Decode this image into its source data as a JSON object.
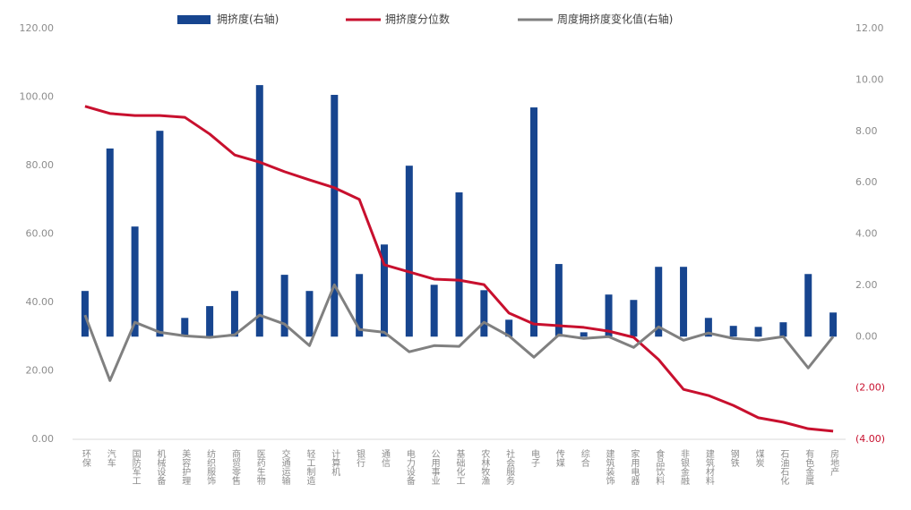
{
  "chart_data": {
    "type": "bar-line",
    "categories": [
      "环保",
      "汽车",
      "国防军工",
      "机械设备",
      "美容护理",
      "纺织服饰",
      "商贸零售",
      "医药生物",
      "交通运输",
      "轻工制造",
      "计算机",
      "银行",
      "通信",
      "电力设备",
      "公用事业",
      "基础化工",
      "农林牧渔",
      "社会服务",
      "电子",
      "传媒",
      "综合",
      "建筑装饰",
      "家用电器",
      "食品饮料",
      "非银金融",
      "建筑材料",
      "钢铁",
      "煤炭",
      "石油石化",
      "有色金属",
      "房地产"
    ],
    "series": [
      {
        "name": "拥挤度(右轴)",
        "type": "bar",
        "axis": "y2",
        "color": "#17458f",
        "values": [
          1.78,
          7.33,
          4.29,
          8.02,
          0.73,
          1.19,
          1.78,
          9.8,
          2.41,
          1.78,
          9.42,
          2.44,
          3.59,
          6.66,
          2.02,
          5.62,
          1.81,
          0.66,
          8.93,
          2.83,
          0.17,
          1.64,
          1.43,
          2.72,
          2.72,
          0.73,
          0.42,
          0.38,
          0.56,
          2.44,
          0.94
        ]
      },
      {
        "name": "拥挤度分位数",
        "type": "line",
        "axis": "y",
        "color": "#c8102e",
        "values": [
          97.3,
          95.2,
          94.6,
          94.6,
          94.1,
          89.2,
          83.1,
          81.0,
          78.2,
          75.8,
          73.5,
          70.1,
          51.0,
          48.9,
          46.8,
          46.5,
          45.2,
          36.9,
          33.7,
          33.2,
          32.7,
          31.6,
          29.8,
          23.3,
          14.6,
          12.8,
          9.9,
          6.3,
          5.0,
          3.1,
          2.4
        ]
      },
      {
        "name": "周度拥挤度变化值(右轴)",
        "type": "line",
        "axis": "y2",
        "color": "#808080",
        "values": [
          0.84,
          -1.71,
          0.56,
          0.17,
          0.03,
          -0.03,
          0.07,
          0.84,
          0.49,
          -0.35,
          2.02,
          0.28,
          0.17,
          -0.59,
          -0.35,
          -0.38,
          0.56,
          0.03,
          -0.8,
          0.07,
          -0.07,
          0.0,
          -0.42,
          0.38,
          -0.14,
          0.14,
          -0.07,
          -0.14,
          0.0,
          -1.22,
          0.0
        ]
      }
    ],
    "ylim": [
      0,
      120
    ],
    "yticks": [
      {
        "value": 0,
        "label": "0.00"
      },
      {
        "value": 20,
        "label": "20.00"
      },
      {
        "value": 40,
        "label": "40.00"
      },
      {
        "value": 60,
        "label": "60.00"
      },
      {
        "value": 80,
        "label": "80.00"
      },
      {
        "value": 100,
        "label": "100.00"
      },
      {
        "value": 120,
        "label": "120.00"
      }
    ],
    "y2lim": [
      -4,
      12
    ],
    "y2ticks": [
      {
        "value": -4,
        "label": "(4.00)"
      },
      {
        "value": -2,
        "label": "(2.00)"
      },
      {
        "value": 0,
        "label": "0.00"
      },
      {
        "value": 2,
        "label": "2.00"
      },
      {
        "value": 4,
        "label": "4.00"
      },
      {
        "value": 6,
        "label": "6.00"
      },
      {
        "value": 8,
        "label": "8.00"
      },
      {
        "value": 10,
        "label": "10.00"
      },
      {
        "value": 12,
        "label": "12.00"
      }
    ],
    "grid": false
  }
}
